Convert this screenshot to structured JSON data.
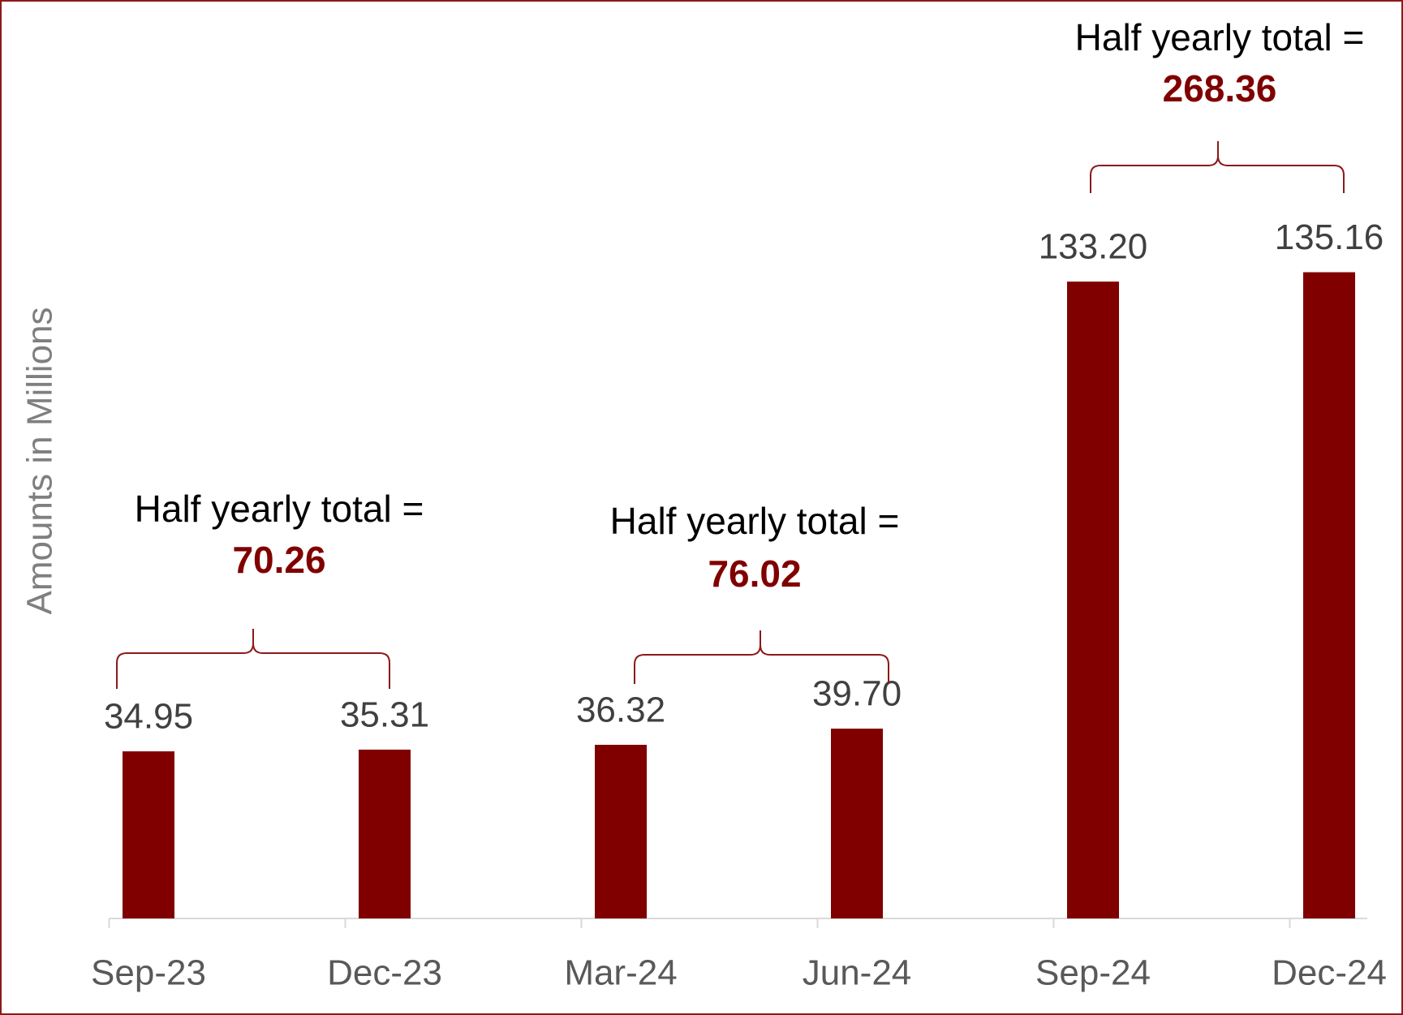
{
  "chart_data": {
    "type": "bar",
    "categories": [
      "Sep-23",
      "Dec-23",
      "Mar-24",
      "Jun-24",
      "Sep-24",
      "Dec-24"
    ],
    "values": [
      34.95,
      35.31,
      36.32,
      39.7,
      133.2,
      135.16
    ],
    "value_labels": [
      "34.95",
      "35.31",
      "36.32",
      "39.70",
      "133.20",
      "135.16"
    ],
    "color": "#800000",
    "y_label": "Amounts in Millions",
    "ylim": [
      0,
      140
    ],
    "annotations": [
      {
        "text": "Half yearly total =",
        "value": 70.26
      },
      {
        "text": "Half yearly total =",
        "value": 76.02
      },
      {
        "text": "Half yearly total =",
        "value": 268.36
      }
    ]
  }
}
